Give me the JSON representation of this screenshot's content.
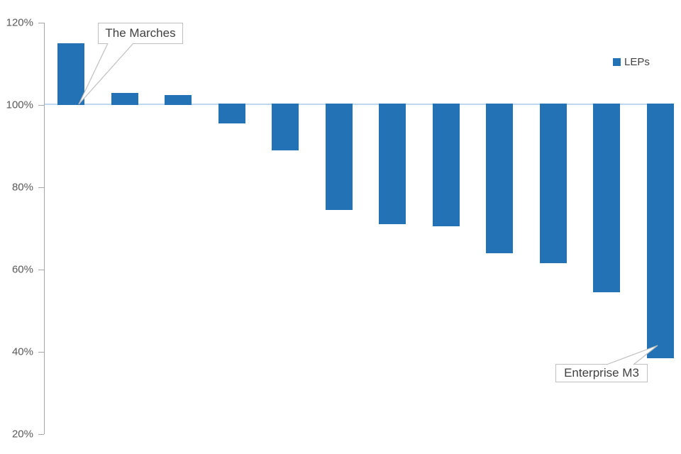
{
  "chart_data": {
    "type": "bar",
    "title": "",
    "legend": [
      {
        "label": "LEPs",
        "color": "#2272B5"
      }
    ],
    "y_axis": {
      "unit": "%",
      "min": 20,
      "max": 120,
      "tick_labels": [
        "120%",
        "100%",
        "80%",
        "60%",
        "40%",
        "20%"
      ],
      "tick_values": [
        120,
        100,
        80,
        60,
        40,
        20
      ]
    },
    "baseline_value": 100,
    "series": [
      {
        "name": "LEPs",
        "values": [
          115,
          103,
          102.5,
          95.5,
          89,
          74.5,
          71,
          70.5,
          64,
          61.5,
          54.5,
          38.5
        ]
      }
    ],
    "annotations": [
      {
        "label": "The Marches",
        "bar_index": 0
      },
      {
        "label": "Enterprise M3",
        "bar_index": 11
      }
    ],
    "colors": {
      "bar": "#2272B5",
      "baseline": "#BDD7EE",
      "axis": "#A6A6A6",
      "tick_label": "#595959",
      "callout_border": "#BFBFBF",
      "callout_text": "#404040"
    },
    "layout_hints": {
      "legend_position": "top-right",
      "grid": "off",
      "xlabels": "none"
    }
  }
}
